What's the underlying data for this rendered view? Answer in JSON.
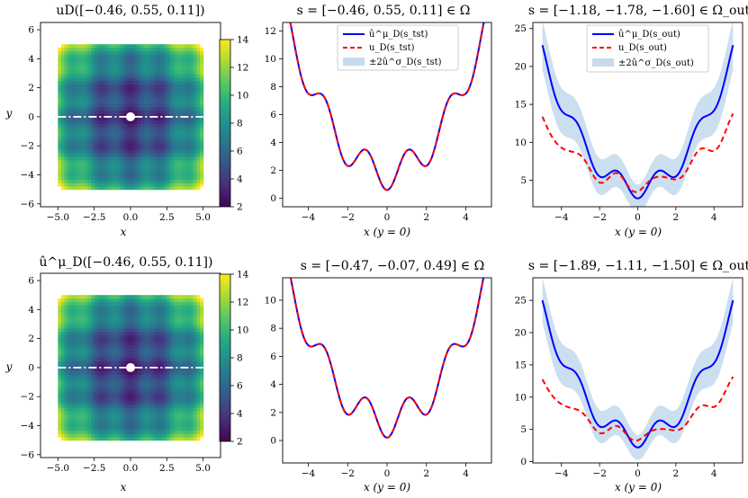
{
  "chart_data": [
    {
      "id": "r1c1",
      "type": "heatmap",
      "title": "uD([−0.46, 0.55, 0.11])",
      "xlabel": "x",
      "ylabel": "y",
      "xlim": [
        -6.2,
        6.2
      ],
      "ylim": [
        -6.2,
        6.5
      ],
      "xticks": [
        -5.0,
        -2.5,
        0.0,
        2.5,
        5.0
      ],
      "xtick_labels": [
        "−5.0",
        "−2.5",
        "0.0",
        "2.5",
        "5.0"
      ],
      "yticks": [
        -6,
        -4,
        -2,
        0,
        2,
        4,
        6
      ],
      "ytick_labels": [
        "−6",
        "−4",
        "−2",
        "0",
        "2",
        "4",
        "6"
      ],
      "colorbar": {
        "min": 2,
        "max": 14,
        "ticks": [
          2,
          4,
          6,
          8,
          10,
          12,
          14
        ],
        "tick_labels": [
          "2",
          "4",
          "6",
          "8",
          "10",
          "12",
          "14"
        ]
      },
      "marker": {
        "x": 0,
        "y": 0
      },
      "dashdot_line_y": 0
    },
    {
      "id": "r1c2",
      "type": "line",
      "title": "s = [−0.46, 0.55, 0.11] ∈ Ω",
      "xlabel": "x (y = 0)",
      "ylabel": "",
      "xlim": [
        -5.3,
        5.3
      ],
      "ylim": [
        -0.6,
        12.6
      ],
      "xticks": [
        -4,
        -2,
        0,
        2,
        4
      ],
      "xtick_labels": [
        "−4",
        "−2",
        "0",
        "2",
        "4"
      ],
      "yticks": [
        0,
        2,
        4,
        6,
        8,
        10,
        12
      ],
      "ytick_labels": [
        "0",
        "2",
        "4",
        "6",
        "8",
        "10",
        "12"
      ],
      "curve_params": {
        "base": 0.6,
        "quad": 0.42,
        "osc": 1.2,
        "osc_freq": 3.0
      },
      "band": false,
      "legend": {
        "position": "top-center",
        "entries": [
          "û^μ_D(s_tst)",
          "u_D(s_tst)",
          "±2û^σ_D(s_tst)"
        ]
      }
    },
    {
      "id": "r1c3",
      "type": "line",
      "title": "s = [−1.18, −1.78, −1.60] ∈ Ω_out",
      "xlabel": "x (y = 0)",
      "ylabel": "",
      "xlim": [
        -5.5,
        5.5
      ],
      "ylim": [
        1.5,
        25.8
      ],
      "xticks": [
        -4,
        -2,
        0,
        2,
        4
      ],
      "xtick_labels": [
        "−4",
        "−2",
        "0",
        "2",
        "4"
      ],
      "yticks": [
        5,
        10,
        15,
        20,
        25
      ],
      "ytick_labels": [
        "5",
        "10",
        "15",
        "20",
        "25"
      ],
      "curve_params": {
        "base": 2.6,
        "quad": 0.71,
        "osc": 1.4,
        "osc_freq": 3.0
      },
      "true_params": {
        "base": 3.5,
        "quad": 0.34,
        "osc": 0.9,
        "osc_freq": 3.0
      },
      "band": true,
      "band_width": 3.3,
      "legend": {
        "position": "top-center",
        "entries": [
          "û^μ_D(s_out)",
          "u_D(s_out)",
          "±2û^σ_D(s_out)"
        ]
      }
    },
    {
      "id": "r2c1",
      "type": "heatmap",
      "title": "û^μ_D([−0.46, 0.55, 0.11])",
      "xlabel": "x",
      "ylabel": "y",
      "xlim": [
        -6.2,
        6.2
      ],
      "ylim": [
        -6.2,
        6.5
      ],
      "xticks": [
        -5.0,
        -2.5,
        0.0,
        2.5,
        5.0
      ],
      "xtick_labels": [
        "−5.0",
        "−2.5",
        "0.0",
        "2.5",
        "5.0"
      ],
      "yticks": [
        -6,
        -4,
        -2,
        0,
        2,
        4,
        6
      ],
      "ytick_labels": [
        "−6",
        "−4",
        "−2",
        "0",
        "2",
        "4",
        "6"
      ],
      "colorbar": {
        "min": 2,
        "max": 14,
        "ticks": [
          2,
          4,
          6,
          8,
          10,
          12,
          14
        ],
        "tick_labels": [
          "2",
          "4",
          "6",
          "8",
          "10",
          "12",
          "14"
        ]
      },
      "marker": {
        "x": 0,
        "y": 0
      },
      "dashdot_line_y": 0
    },
    {
      "id": "r2c2",
      "type": "line",
      "title": "s = [−0.47, −0.07, 0.49] ∈ Ω",
      "xlabel": "x (y = 0)",
      "ylabel": "",
      "xlim": [
        -5.3,
        5.3
      ],
      "ylim": [
        -1.6,
        11.6
      ],
      "xticks": [
        -4,
        -2,
        0,
        2,
        4
      ],
      "xtick_labels": [
        "−4",
        "−2",
        "0",
        "2",
        "4"
      ],
      "yticks": [
        0,
        2,
        4,
        6,
        8,
        10
      ],
      "ytick_labels": [
        "0",
        "2",
        "4",
        "6",
        "8",
        "10"
      ],
      "curve_params": {
        "base": 0.2,
        "quad": 0.4,
        "osc": 1.2,
        "osc_freq": 3.0
      },
      "band": false
    },
    {
      "id": "r2c3",
      "type": "line",
      "title": "s = [−1.89, −1.11, −1.50] ∈ Ω_out",
      "xlabel": "x (y = 0)",
      "ylabel": "",
      "xlim": [
        -5.5,
        5.5
      ],
      "ylim": [
        -0.2,
        28.5
      ],
      "xticks": [
        -4,
        -2,
        0,
        2,
        4
      ],
      "xtick_labels": [
        "−4",
        "−2",
        "0",
        "2",
        "4"
      ],
      "yticks": [
        0,
        5,
        10,
        15,
        20,
        25
      ],
      "ytick_labels": [
        "0",
        "5",
        "10",
        "15",
        "20",
        "25"
      ],
      "curve_params": {
        "base": 2.2,
        "quad": 0.8,
        "osc": 1.6,
        "osc_freq": 3.0
      },
      "true_params": {
        "base": 3.3,
        "quad": 0.33,
        "osc": 0.8,
        "osc_freq": 3.0
      },
      "band": true,
      "band_width": 3.5
    }
  ],
  "colors": {
    "prediction": "#0000ff",
    "truth": "#ff0000",
    "band": "#c6dbef",
    "marker": "#ffffff",
    "viridis": [
      "#440154",
      "#472c7a",
      "#3b528b",
      "#2c728e",
      "#21918c",
      "#28ae80",
      "#5ec962",
      "#addc30",
      "#fde725"
    ]
  }
}
